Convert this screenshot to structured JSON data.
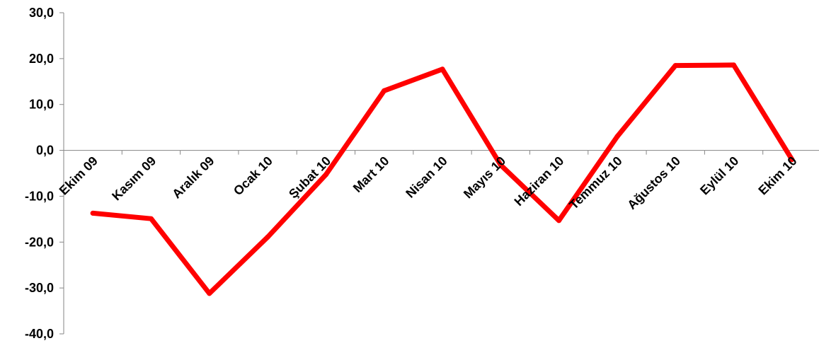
{
  "chart_data": {
    "type": "line",
    "title": "",
    "xlabel": "",
    "ylabel": "",
    "ylim": [
      -40,
      30
    ],
    "yticks": [
      -40,
      -30,
      -20,
      -10,
      0,
      10,
      20,
      30
    ],
    "ytick_labels": [
      "-40,0",
      "-30,0",
      "-20,0",
      "-10,0",
      "0,0",
      "10,0",
      "20,0",
      "30,0"
    ],
    "categories": [
      "Ekim 09",
      "Kasım 09",
      "Aralık 09",
      "Ocak 10",
      "Şubat 10",
      "Mart 10",
      "Nisan 10",
      "Mayıs 10",
      "Haziran 10",
      "Temmuz 10",
      "Ağustos 10",
      "Eylül 10",
      "Ekim 10"
    ],
    "series": [
      {
        "color": "#ff0000",
        "values": [
          -13.7,
          -14.9,
          -31.2,
          -18.9,
          -5.3,
          13.0,
          17.7,
          -3.2,
          -15.3,
          3.0,
          18.5,
          18.6,
          -2.0
        ]
      }
    ],
    "grid": false,
    "legend": "none"
  }
}
